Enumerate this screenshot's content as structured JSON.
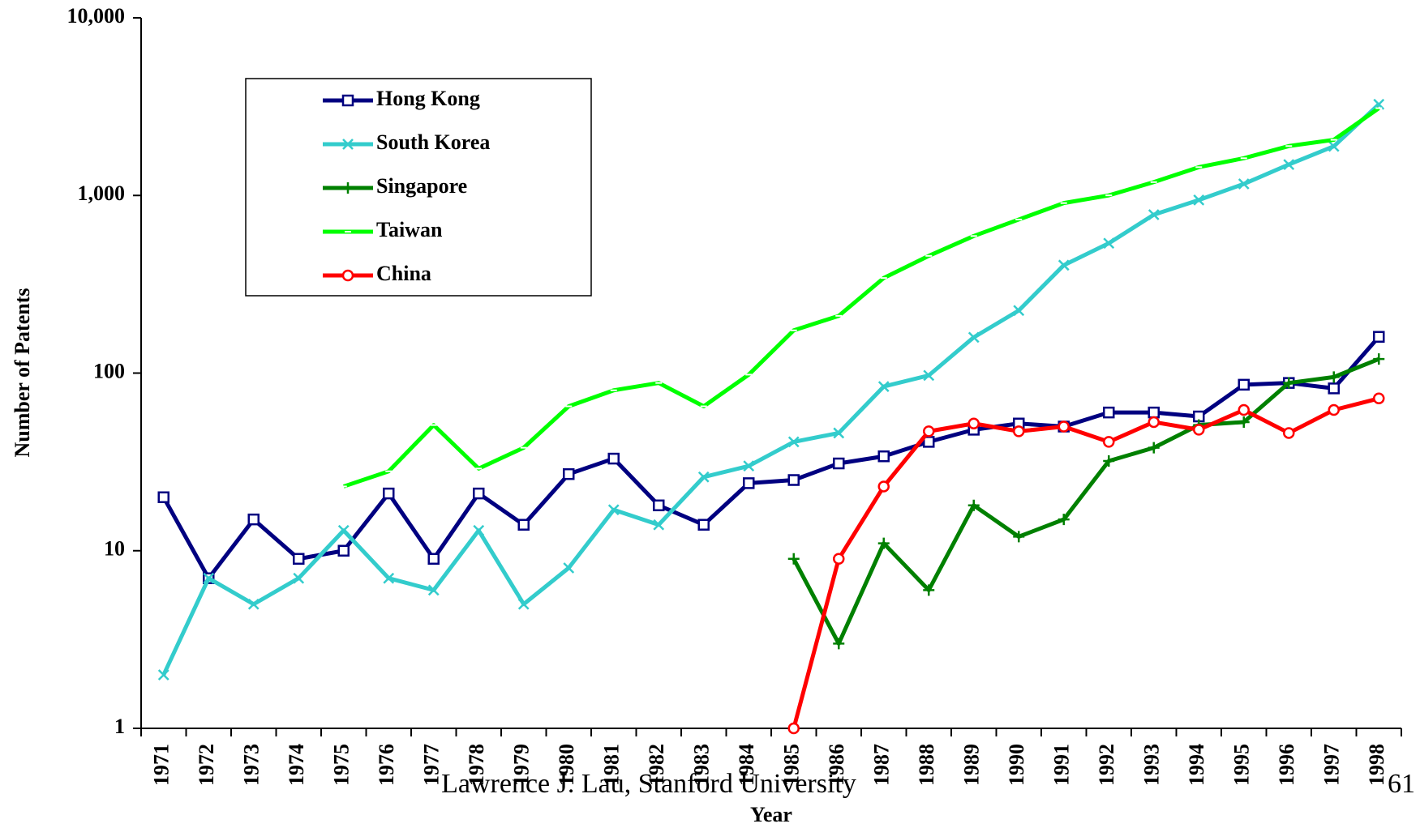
{
  "chart_data": {
    "type": "line",
    "y_label": "Number of Patents",
    "x_label": "Year",
    "footer": "Lawrence J. Lau, Stanford University",
    "page_number": "61",
    "log_scale": true,
    "ylim": [
      1,
      10000
    ],
    "yticks": [
      1,
      10,
      100,
      {
        "value": 1000,
        "label": "1,000"
      },
      {
        "value": 10000,
        "label": "10,000"
      }
    ],
    "categories": [
      "1971",
      "1972",
      "1973",
      "1974",
      "1975",
      "1976",
      "1977",
      "1978",
      "1979",
      "1980",
      "1981",
      "1982",
      "1983",
      "1984",
      "1985",
      "1986",
      "1987",
      "1988",
      "1989",
      "1990",
      "1991",
      "1992",
      "1993",
      "1994",
      "1995",
      "1996",
      "1997",
      "1998"
    ],
    "legend": "upper left",
    "series": [
      {
        "name": "Hong Kong",
        "color": "#000080",
        "marker": "square",
        "values": [
          20,
          7,
          15,
          9,
          10,
          21,
          9,
          21,
          14,
          27,
          33,
          18,
          14,
          24,
          25,
          31,
          34,
          41,
          48,
          52,
          50,
          60,
          60,
          57,
          86,
          88,
          82,
          160
        ]
      },
      {
        "name": "South Korea",
        "color": "#33cccc",
        "marker": "x",
        "values": [
          2,
          7,
          5,
          7,
          13,
          7,
          6,
          13,
          5,
          8,
          17,
          14,
          26,
          30,
          41,
          46,
          84,
          97,
          159,
          225,
          405,
          538,
          779,
          943,
          1161,
          1493,
          1891,
          3259
        ]
      },
      {
        "name": "Singapore",
        "color": "#008000",
        "marker": "plus",
        "values": [
          null,
          null,
          null,
          null,
          null,
          null,
          null,
          null,
          null,
          null,
          null,
          null,
          null,
          null,
          9,
          3,
          11,
          6,
          18,
          12,
          15,
          32,
          38,
          51,
          53,
          88,
          95,
          120
        ]
      },
      {
        "name": "Taiwan",
        "color": "#00ff00",
        "marker": "dash",
        "values": [
          null,
          null,
          null,
          null,
          23,
          28,
          51,
          29,
          38,
          65,
          80,
          88,
          65,
          98,
          174,
          210,
          343,
          457,
          591,
          732,
          906,
          1001,
          1189,
          1443,
          1620,
          1897,
          2057,
          3100
        ]
      },
      {
        "name": "China",
        "color": "#ff0000",
        "marker": "circle",
        "values": [
          null,
          null,
          null,
          null,
          null,
          null,
          null,
          null,
          null,
          null,
          null,
          null,
          null,
          null,
          1,
          9,
          23,
          47,
          52,
          47,
          50,
          41,
          53,
          48,
          62,
          46,
          62,
          72
        ]
      }
    ]
  }
}
